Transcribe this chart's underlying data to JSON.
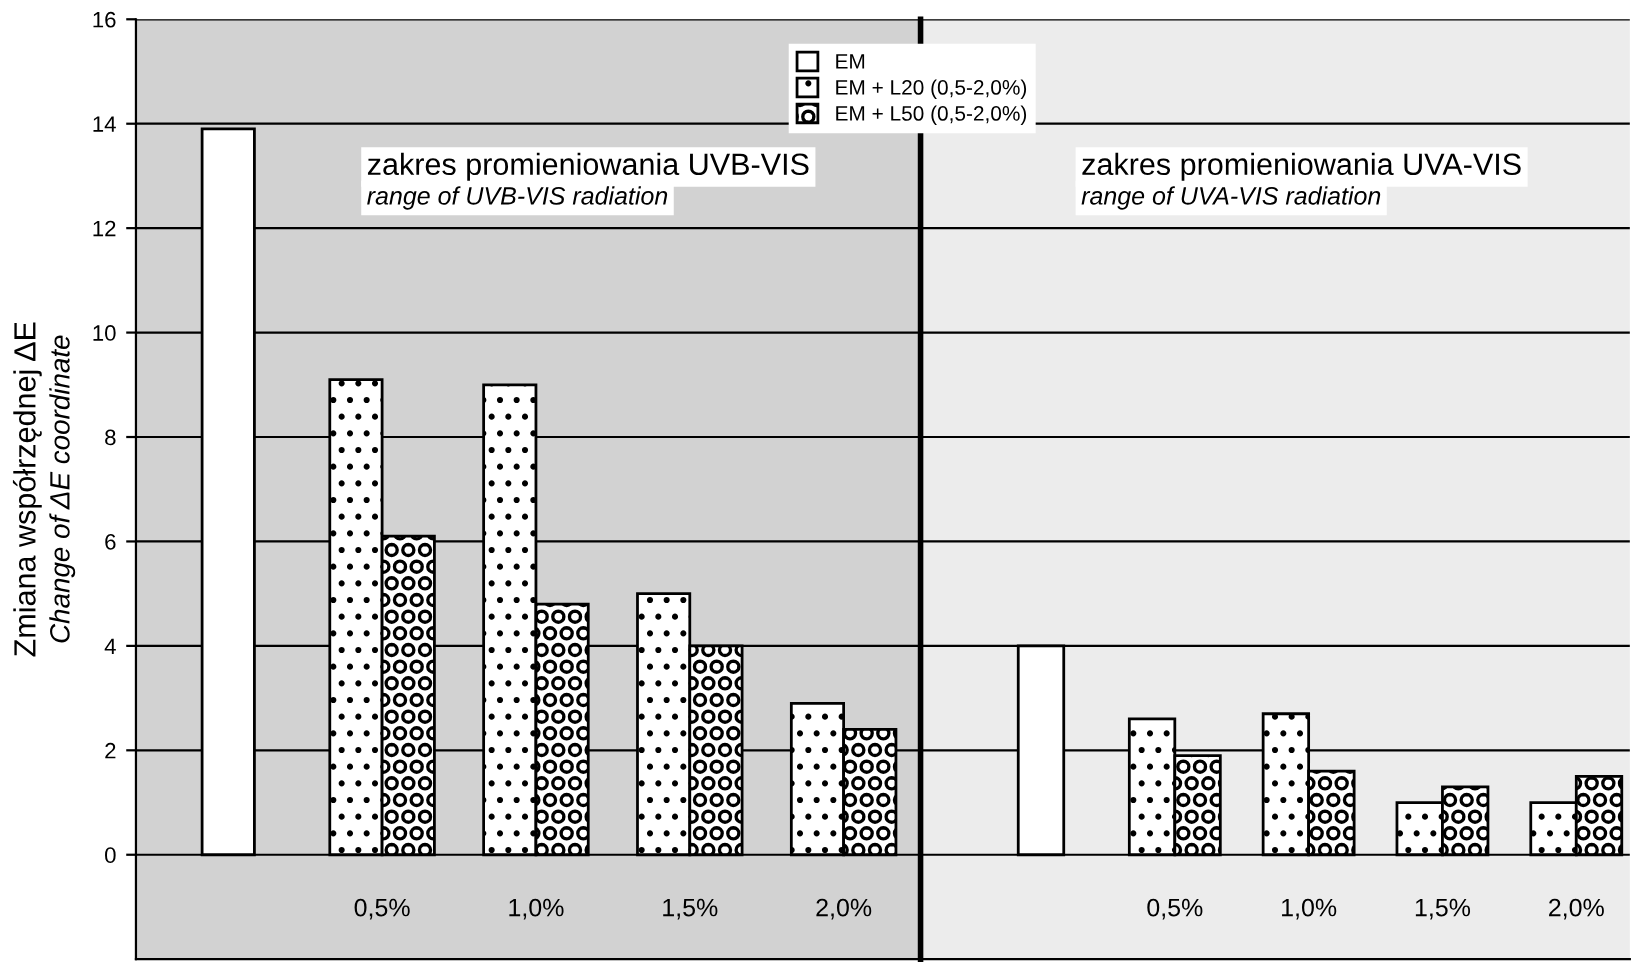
{
  "chart_data": [
    {
      "type": "bar",
      "ylabel": "Zmiana współrzędnej ΔE\nChange of ΔE coordinate",
      "categories": [
        null,
        "0,5%",
        "1,0%",
        "1,5%",
        "2,0%"
      ],
      "series": [
        {
          "name": "EM",
          "color": "#ffffff",
          "values": [
            13.9,
            null,
            null,
            null,
            null
          ]
        },
        {
          "name": "EM + L20 (0,5-2,0%)",
          "color": "#000000",
          "values": [
            null,
            9.1,
            9.0,
            5.0,
            2.9
          ]
        },
        {
          "name": "EM + L50 (0,5-2,0%)",
          "color": "#000000",
          "values": [
            null,
            6.1,
            4.8,
            4.0,
            2.4
          ]
        }
      ],
      "ylim": [
        -2,
        16
      ],
      "yticks": [
        0,
        2,
        4,
        6,
        8,
        10,
        12,
        14,
        16
      ],
      "grid": "y",
      "legend": "top right",
      "annotations": [
        "zakres promieniowania UVB-VIS\nrange of UVB-VIS radiation"
      ]
    },
    {
      "type": "bar",
      "categories": [
        null,
        "0,5%",
        "1,0%",
        "1,5%",
        "2,0%"
      ],
      "series": [
        {
          "color": "#ffffff",
          "values": [
            4.0,
            null,
            null,
            null,
            null
          ]
        },
        {
          "color": "#000000",
          "values": [
            null,
            2.6,
            2.7,
            1.0,
            1.0
          ]
        },
        {
          "color": "#000000",
          "values": [
            null,
            1.9,
            1.6,
            1.3,
            1.5
          ]
        }
      ],
      "ylim": [
        -2,
        16
      ],
      "yticks": [
        0,
        2,
        4,
        6,
        8,
        10,
        12,
        14,
        16
      ],
      "grid": "y",
      "tick_labels": "x",
      "annotations": [
        "zakres promieniowania UVA-VIS\nrange of UVA-VIS radiation"
      ]
    }
  ]
}
